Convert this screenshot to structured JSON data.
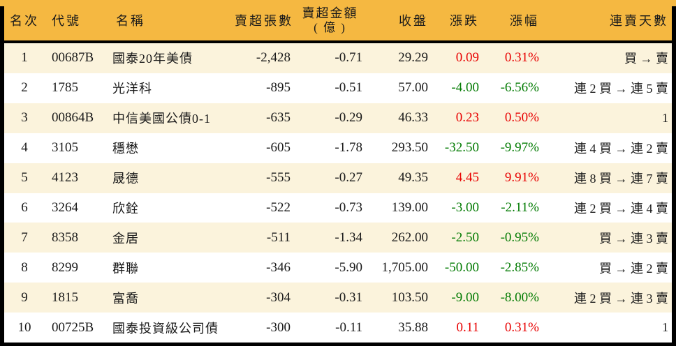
{
  "colors": {
    "header_bg": "#f5b841",
    "stripe_bg": "#fbf3dc",
    "row_bg": "#ffffff",
    "frame": "#000000",
    "text": "#1a1a1a",
    "up_red": "#e80000",
    "down_green": "#007a00"
  },
  "table": {
    "columns": {
      "rank": "名次",
      "code": "代號",
      "name": "名稱",
      "volume": "賣超張數",
      "amount_line1": "賣超金額",
      "amount_line2": "( 億 )",
      "close": "收盤",
      "change": "漲跌",
      "change_pct": "漲幅",
      "streak": "連賣天數"
    },
    "rows": [
      {
        "rank": "1",
        "code": "00687B",
        "name": "國泰20年美債",
        "volume": "-2,428",
        "amount": "-0.71",
        "close": "29.29",
        "change": "0.09",
        "change_pct": "0.31%",
        "trend": "up",
        "streak": "買 → 賣"
      },
      {
        "rank": "2",
        "code": "1785",
        "name": "光洋科",
        "volume": "-895",
        "amount": "-0.51",
        "close": "57.00",
        "change": "-4.00",
        "change_pct": "-6.56%",
        "trend": "down",
        "streak": "連 2 買 → 連 5 賣"
      },
      {
        "rank": "3",
        "code": "00864B",
        "name": "中信美國公債0-1",
        "volume": "-635",
        "amount": "-0.29",
        "close": "46.33",
        "change": "0.23",
        "change_pct": "0.50%",
        "trend": "up",
        "streak": "1"
      },
      {
        "rank": "4",
        "code": "3105",
        "name": "穩懋",
        "volume": "-605",
        "amount": "-1.78",
        "close": "293.50",
        "change": "-32.50",
        "change_pct": "-9.97%",
        "trend": "down",
        "streak": "連 4 買 → 連 2 賣"
      },
      {
        "rank": "5",
        "code": "4123",
        "name": "晟德",
        "volume": "-555",
        "amount": "-0.27",
        "close": "49.35",
        "change": "4.45",
        "change_pct": "9.91%",
        "trend": "up",
        "streak": "連 8 買 → 連 7 賣"
      },
      {
        "rank": "6",
        "code": "3264",
        "name": "欣銓",
        "volume": "-522",
        "amount": "-0.73",
        "close": "139.00",
        "change": "-3.00",
        "change_pct": "-2.11%",
        "trend": "down",
        "streak": "連 2 買 → 連 4 賣"
      },
      {
        "rank": "7",
        "code": "8358",
        "name": "金居",
        "volume": "-511",
        "amount": "-1.34",
        "close": "262.00",
        "change": "-2.50",
        "change_pct": "-0.95%",
        "trend": "down",
        "streak": "買 → 連 3 賣"
      },
      {
        "rank": "8",
        "code": "8299",
        "name": "群聯",
        "volume": "-346",
        "amount": "-5.90",
        "close": "1,705.00",
        "change": "-50.00",
        "change_pct": "-2.85%",
        "trend": "down",
        "streak": "買 → 連 2 賣"
      },
      {
        "rank": "9",
        "code": "1815",
        "name": "富喬",
        "volume": "-304",
        "amount": "-0.31",
        "close": "103.50",
        "change": "-9.00",
        "change_pct": "-8.00%",
        "trend": "down",
        "streak": "連 2 買 → 連 3 賣"
      },
      {
        "rank": "10",
        "code": "00725B",
        "name": "國泰投資級公司債",
        "volume": "-300",
        "amount": "-0.11",
        "close": "35.88",
        "change": "0.11",
        "change_pct": "0.31%",
        "trend": "up",
        "streak": "1"
      }
    ]
  }
}
